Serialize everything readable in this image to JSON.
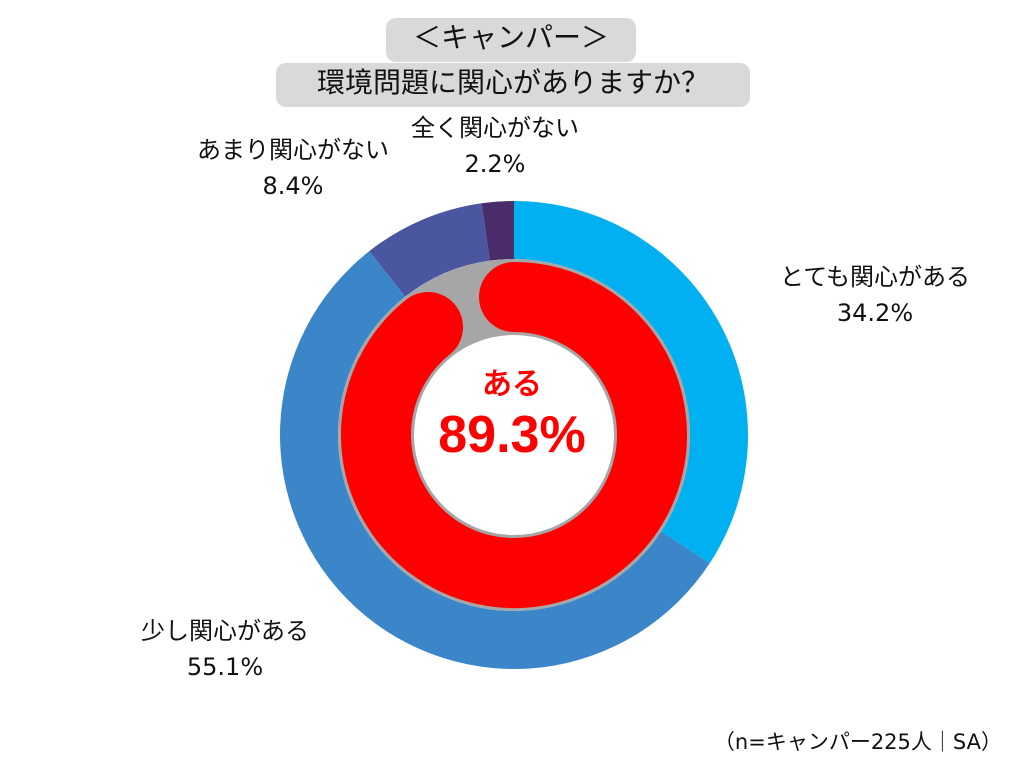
{
  "title": {
    "line1": "＜キャンパー＞",
    "line2": "環境問題に関心がありますか？"
  },
  "center": {
    "label": "ある",
    "value": "89.3%"
  },
  "note": "（n=キャンパー225人｜SA）",
  "colors": {
    "very_interested": "#00b0f0",
    "somewhat_interested": "#3b86c9",
    "not_very_interested": "#4a56a0",
    "not_at_all": "#4a2c6a",
    "aru": "#ff0000",
    "remainder": "#a6a6a6",
    "title_bg": "#d9d9d9"
  },
  "chart_data": {
    "type": "pie",
    "variant": "donut",
    "outer": {
      "series": [
        {
          "name": "とても関心がある",
          "value": 34.2,
          "label": "34.2%"
        },
        {
          "name": "少し関心がある",
          "value": 55.1,
          "label": "55.1%"
        },
        {
          "name": "あまり関心がない",
          "value": 8.4,
          "label": "8.4%"
        },
        {
          "name": "全く関心がない",
          "value": 2.2,
          "label": "2.2%"
        }
      ]
    },
    "inner": {
      "series": [
        {
          "name": "ある",
          "value": 89.3,
          "label": "89.3%"
        },
        {
          "value": 10.7
        }
      ]
    },
    "legend": "none"
  }
}
